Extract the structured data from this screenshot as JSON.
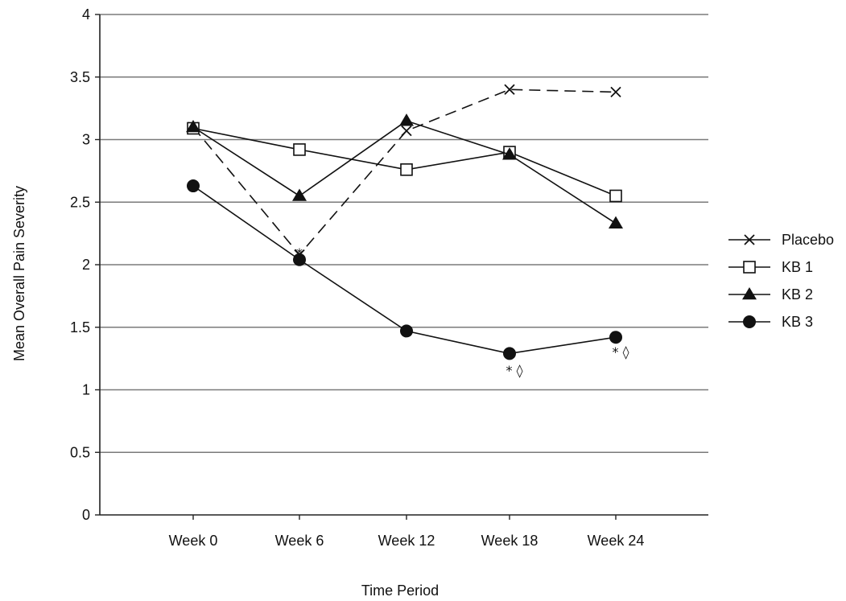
{
  "chart_data": {
    "type": "line",
    "title": "",
    "xlabel": "Time Period",
    "ylabel": "Mean Overall Pain Severity",
    "categories": [
      "Week 0",
      "Week 6",
      "Week 12",
      "Week 18",
      "Week 24"
    ],
    "ylim": [
      0,
      4
    ],
    "yticks": [
      "0",
      "0.5",
      "1",
      "1.5",
      "2",
      "2.5",
      "3",
      "3.5",
      "4"
    ],
    "grid": true,
    "legend_position": "right",
    "series": [
      {
        "name": "Placebo",
        "marker": "x",
        "line": "dashed",
        "values": [
          3.1,
          2.08,
          3.07,
          3.4,
          3.38
        ]
      },
      {
        "name": "KB 1",
        "marker": "open-square",
        "line": "solid",
        "values": [
          3.09,
          2.92,
          2.76,
          2.9,
          2.55
        ]
      },
      {
        "name": "KB 2",
        "marker": "filled-triangle",
        "line": "solid",
        "values": [
          3.1,
          2.55,
          3.15,
          2.88,
          2.33
        ]
      },
      {
        "name": "KB 3",
        "marker": "filled-circle",
        "line": "solid",
        "values": [
          2.63,
          2.04,
          1.47,
          1.29,
          1.42
        ]
      }
    ],
    "annotations": [
      {
        "text": "*",
        "category": "Week 6"
      },
      {
        "text": "* ◊",
        "category": "Week 18"
      },
      {
        "text": "* ◊",
        "category": "Week 24"
      }
    ]
  }
}
